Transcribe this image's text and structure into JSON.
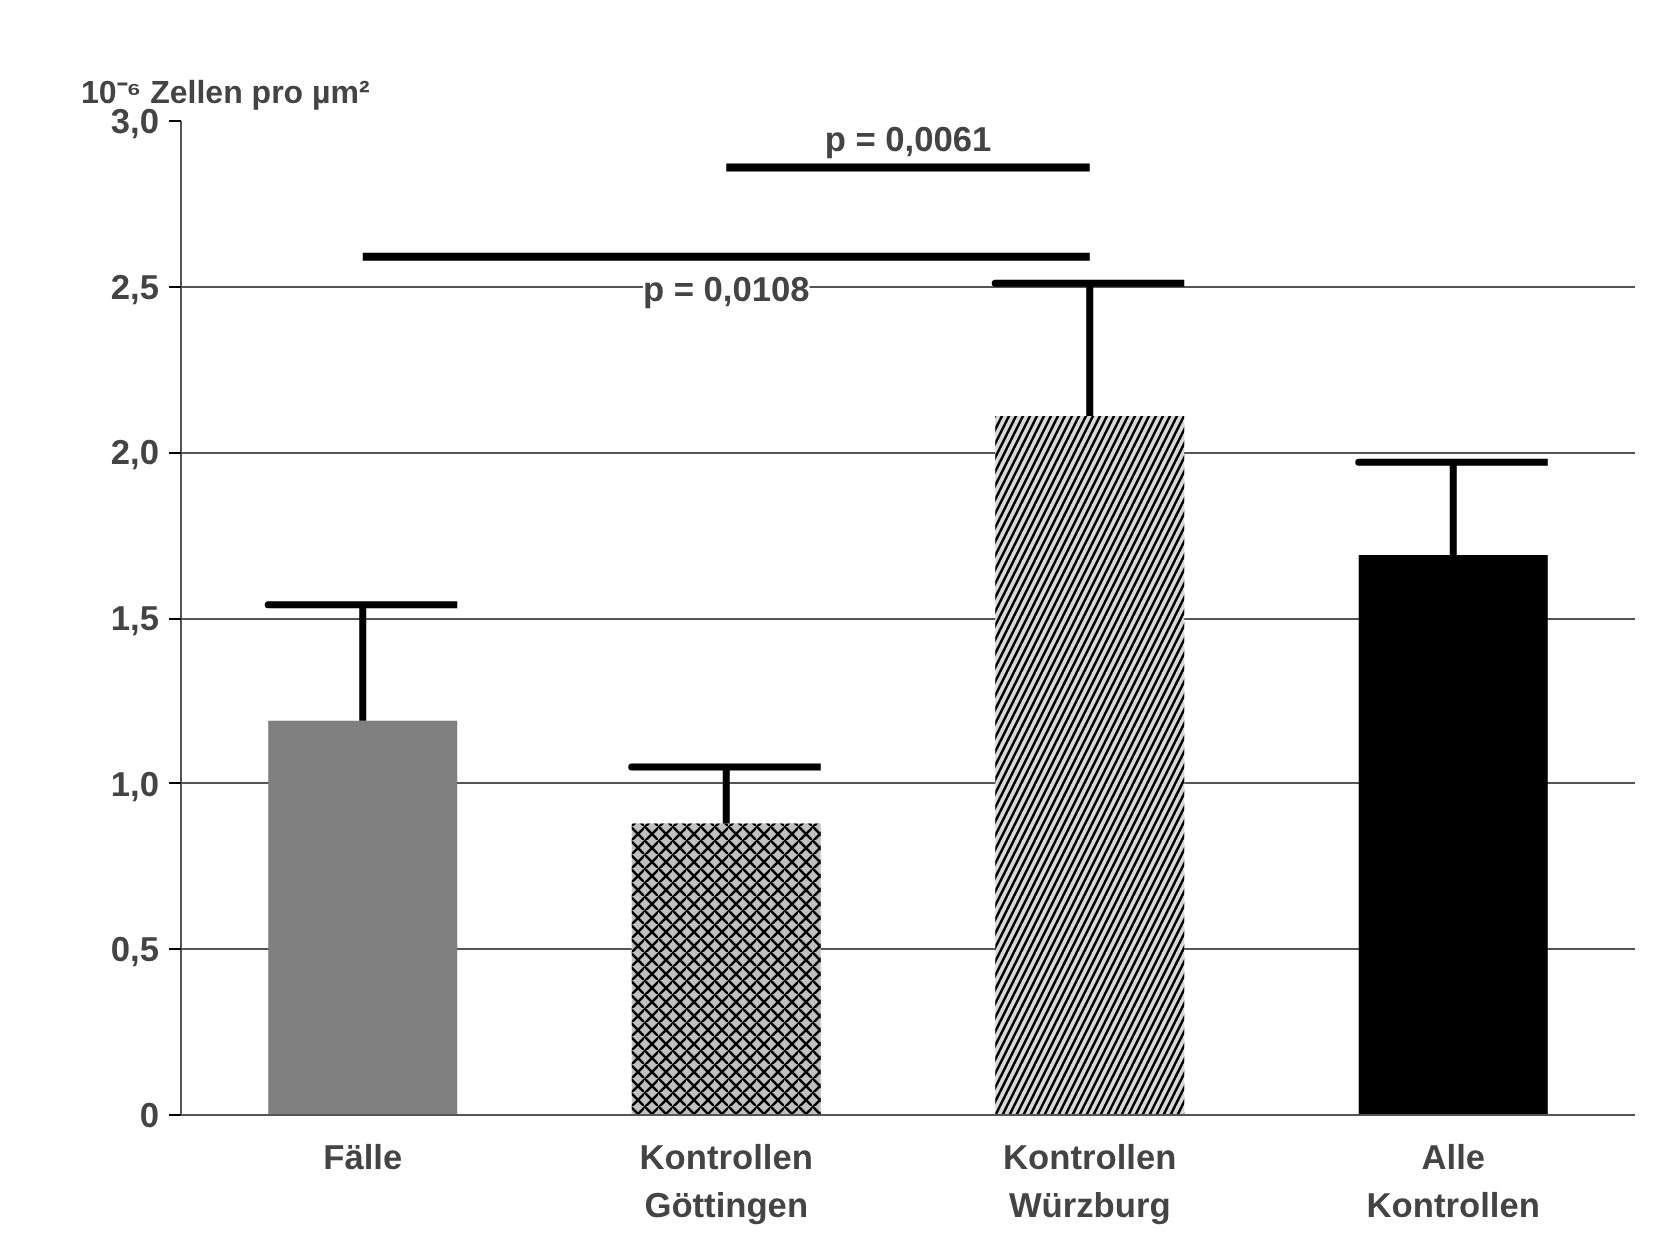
{
  "chart_data": {
    "type": "bar",
    "ylabel": "10⁻⁶ Zellen pro µm²",
    "categories": [
      "Fälle",
      "Kontrollen\nGöttingen",
      "Kontrollen\nWürzburg",
      "Alle\nKontrollen"
    ],
    "values": [
      1.19,
      0.88,
      2.11,
      1.69
    ],
    "colors": [
      "#808080",
      "#c0c0c0",
      "#d9d9d9",
      "#000000"
    ],
    "errors": [
      [
        1.19,
        1.54
      ],
      [
        0.88,
        1.05
      ],
      [
        2.11,
        2.51
      ],
      [
        1.69,
        1.97
      ]
    ],
    "ylim": [
      0,
      3.0
    ],
    "yticks": [
      0,
      {
        "value": 0.5,
        "label": "0,5"
      },
      {
        "value": 1.0,
        "label": "1,0"
      },
      {
        "value": 1.5,
        "label": "1,5"
      },
      {
        "value": 2.0,
        "label": "2,0"
      },
      {
        "value": 2.5,
        "label": "2,5"
      },
      {
        "value": 3.0,
        "label": "3,0"
      }
    ],
    "grid": "y",
    "annotations": [
      "p = 0,0061",
      "p = 0,0108"
    ]
  }
}
